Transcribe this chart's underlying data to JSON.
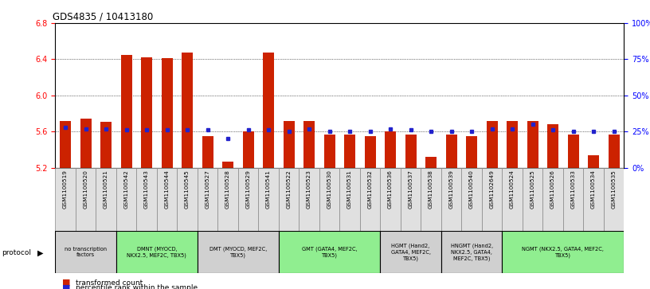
{
  "title": "GDS4835 / 10413180",
  "samples": [
    "GSM1100519",
    "GSM1100520",
    "GSM1100521",
    "GSM1100542",
    "GSM1100543",
    "GSM1100544",
    "GSM1100545",
    "GSM1100527",
    "GSM1100528",
    "GSM1100529",
    "GSM1100541",
    "GSM1100522",
    "GSM1100523",
    "GSM1100530",
    "GSM1100531",
    "GSM1100532",
    "GSM1100536",
    "GSM1100537",
    "GSM1100538",
    "GSM1100539",
    "GSM1100540",
    "GSM1102649",
    "GSM1100524",
    "GSM1100525",
    "GSM1100526",
    "GSM1100533",
    "GSM1100534",
    "GSM1100535"
  ],
  "bar_values": [
    5.72,
    5.74,
    5.71,
    6.45,
    6.42,
    6.41,
    6.47,
    5.55,
    5.27,
    5.6,
    6.47,
    5.72,
    5.72,
    5.57,
    5.57,
    5.55,
    5.6,
    5.57,
    5.32,
    5.57,
    5.55,
    5.72,
    5.72,
    5.72,
    5.68,
    5.57,
    5.34,
    5.57
  ],
  "percentile_values": [
    28,
    27,
    27,
    26,
    26,
    26,
    26,
    26,
    20,
    26,
    26,
    25,
    27,
    25,
    25,
    25,
    27,
    26,
    25,
    25,
    25,
    27,
    27,
    30,
    26,
    25,
    25,
    25
  ],
  "protocol_groups": [
    {
      "label": "no transcription\nfactors",
      "start": 0,
      "end": 3,
      "color": "#d0d0d0"
    },
    {
      "label": "DMNT (MYOCD,\nNKX2.5, MEF2C, TBX5)",
      "start": 3,
      "end": 7,
      "color": "#90ee90"
    },
    {
      "label": "DMT (MYOCD, MEF2C,\nTBX5)",
      "start": 7,
      "end": 11,
      "color": "#d0d0d0"
    },
    {
      "label": "GMT (GATA4, MEF2C,\nTBX5)",
      "start": 11,
      "end": 16,
      "color": "#90ee90"
    },
    {
      "label": "HGMT (Hand2,\nGATA4, MEF2C,\nTBX5)",
      "start": 16,
      "end": 19,
      "color": "#d0d0d0"
    },
    {
      "label": "HNGMT (Hand2,\nNKX2.5, GATA4,\nMEF2C, TBX5)",
      "start": 19,
      "end": 22,
      "color": "#d0d0d0"
    },
    {
      "label": "NGMT (NKX2.5, GATA4, MEF2C,\nTBX5)",
      "start": 22,
      "end": 28,
      "color": "#90ee90"
    }
  ],
  "ymin": 5.2,
  "ymax": 6.8,
  "yticks_left": [
    5.2,
    5.6,
    6.0,
    6.4,
    6.8
  ],
  "yticks_right": [
    0,
    25,
    50,
    75,
    100
  ],
  "bar_color": "#cc2200",
  "dot_color": "#2222cc",
  "bg_color": "#ffffff"
}
